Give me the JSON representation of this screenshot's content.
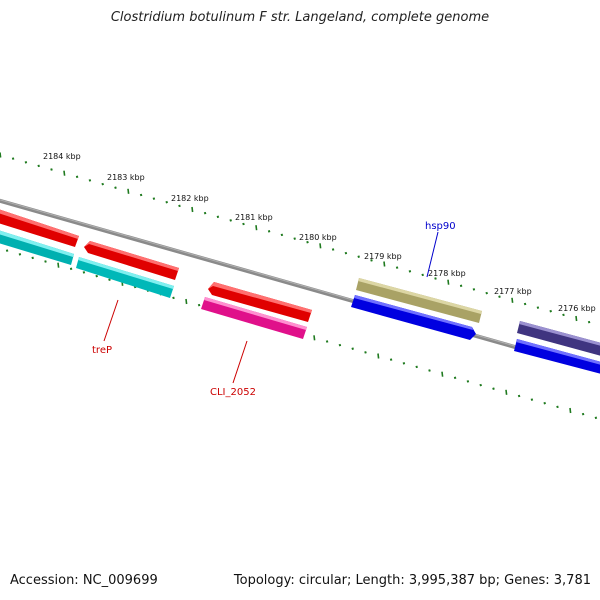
{
  "title": "Clostridium botulinum F str. Langeland, complete genome",
  "footer": {
    "accession": "Accession: NC_009699",
    "summary": "Topology: circular; Length: 3,995,387 bp; Genes: 3,781"
  },
  "colors": {
    "backbone": "#808080",
    "ticks": "#1f7a1f",
    "red": "#ff0000",
    "cyan": "#00c8c8",
    "magenta": "#ff1493",
    "khaki": "#b9b275",
    "blue": "#0000ee",
    "slate": "#4b3f8f",
    "label_red": "#cc0000",
    "label_blue": "#0000cc"
  },
  "scale_labels": [
    "2184 kbp",
    "2183 kbp",
    "2182 kbp",
    "2181 kbp",
    "2180 kbp",
    "2179 kbp",
    "2178 kbp",
    "2177 kbp",
    "2176 kbp"
  ],
  "genes": [
    {
      "label": "treP",
      "color": "label_red"
    },
    {
      "label": "CLI_2052",
      "color": "label_red"
    },
    {
      "label": "hsp90",
      "color": "label_blue"
    }
  ]
}
